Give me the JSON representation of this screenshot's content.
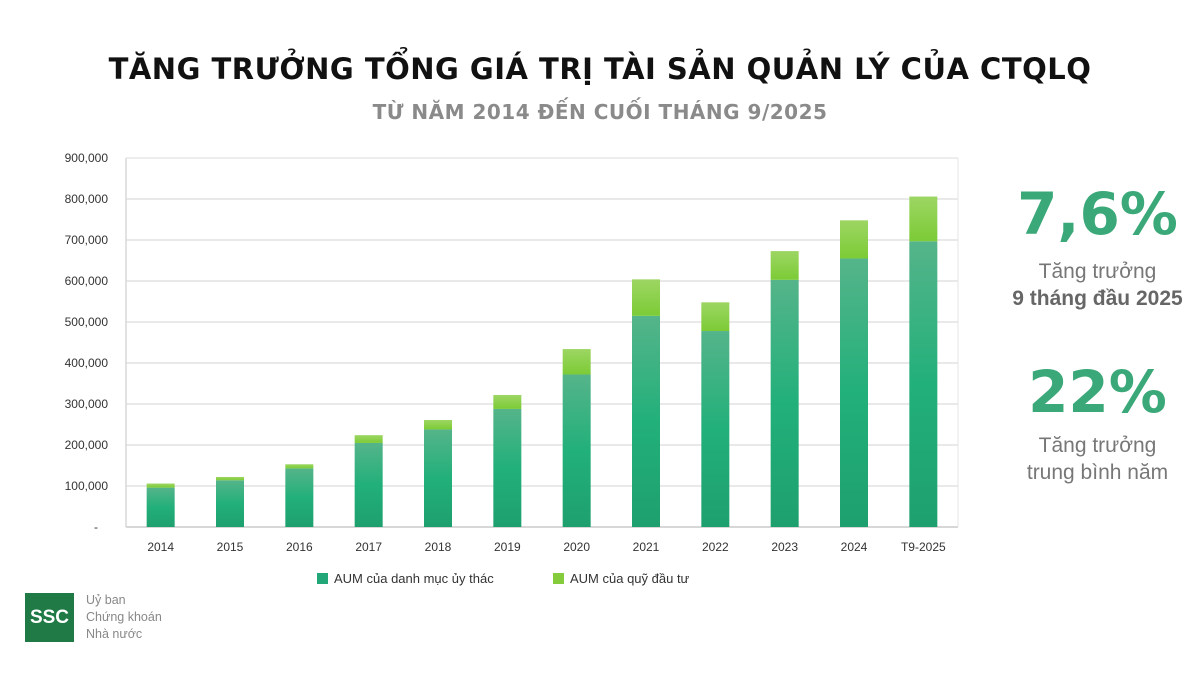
{
  "title": "TĂNG TRƯỞNG TỔNG GIÁ TRỊ TÀI SẢN QUẢN LÝ CỦA CTQLQ",
  "subtitle": "TỪ NĂM 2014 ĐẾN CUỐI THÁNG 9/2025",
  "stats": [
    {
      "value": "7,6%",
      "label1": "Tăng trưởng",
      "label2": "9 tháng đầu 2025"
    },
    {
      "value": "22%",
      "label1": "Tăng trưởng",
      "label2": "trung bình năm"
    }
  ],
  "logo": {
    "mark": "SSC",
    "lines": [
      "Uỷ ban",
      "Chứng khoán",
      "Nhà nước"
    ]
  },
  "colors": {
    "base": "#22a878",
    "fund": "#84cc3c",
    "grid": "#dcdcdc",
    "accent": "#3aa878"
  },
  "chart_data": {
    "type": "bar",
    "stacked": true,
    "categories": [
      "2014",
      "2015",
      "2016",
      "2017",
      "2018",
      "2019",
      "2020",
      "2021",
      "2022",
      "2023",
      "2024",
      "T9-2025"
    ],
    "series": [
      {
        "name": "AUM của danh mục ủy thác",
        "values": [
          96000,
          114000,
          143000,
          205000,
          238000,
          288000,
          372000,
          515000,
          478000,
          603000,
          655000,
          697000
        ]
      },
      {
        "name": "AUM của quỹ đầu tư",
        "values": [
          10000,
          8000,
          10000,
          19000,
          23000,
          34000,
          62000,
          89000,
          70000,
          70000,
          93000,
          109000
        ]
      }
    ],
    "yticks": [
      "-",
      "100,000",
      "200,000",
      "300,000",
      "400,000",
      "500,000",
      "600,000",
      "700,000",
      "800,000",
      "900,000"
    ],
    "ylim": [
      0,
      900000
    ],
    "grid": true,
    "legend_position": "bottom"
  }
}
